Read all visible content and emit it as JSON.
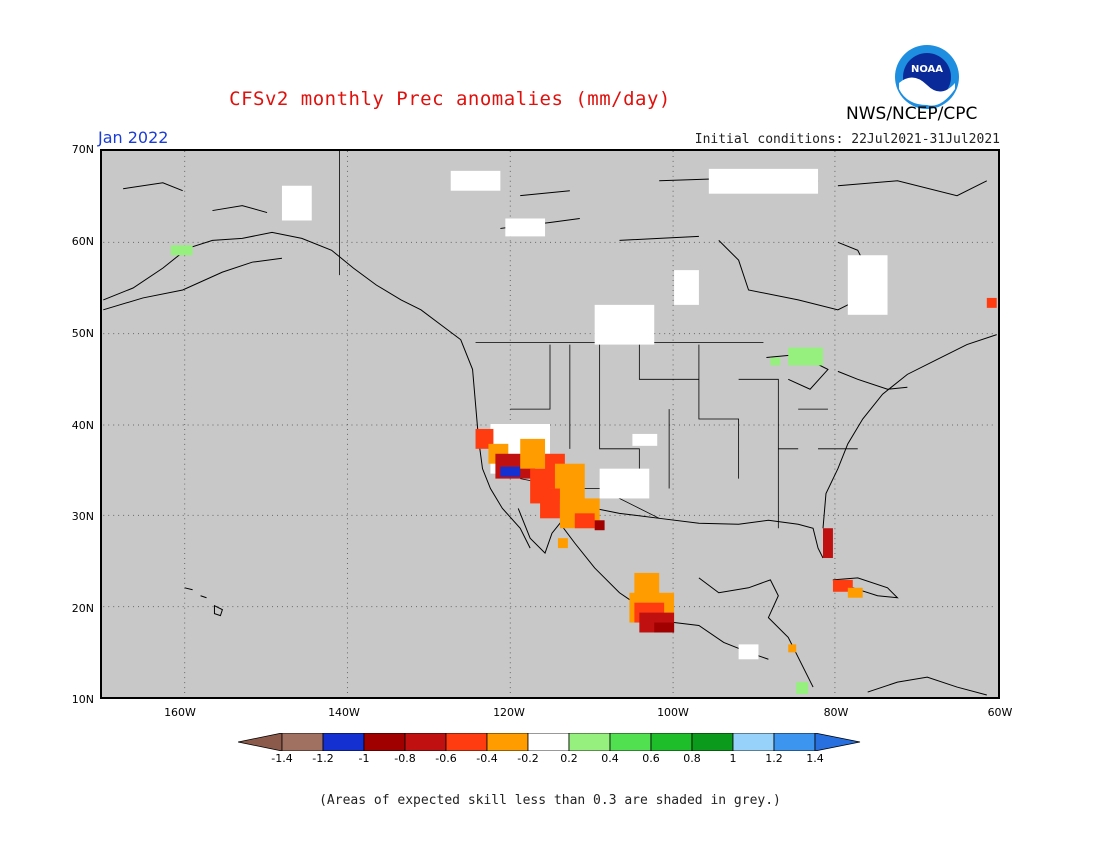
{
  "header": {
    "title": "CFSv2 monthly Prec anomalies (mm/day)",
    "agency": "NWS/NCEP/CPC",
    "month": "Jan 2022",
    "initial_conditions": "Initial conditions: 22Jul2021-31Jul2021",
    "logo_text": "NOAA"
  },
  "map": {
    "lat_labels": [
      "70N",
      "60N",
      "50N",
      "40N",
      "30N",
      "20N",
      "10N"
    ],
    "lon_labels": [
      "160W",
      "140W",
      "120W",
      "100W",
      "80W",
      "60W"
    ],
    "land_fill_color": "#c8c8c8"
  },
  "colorbar": {
    "labels": [
      "-1.4",
      "-1.2",
      "-1",
      "-0.8",
      "-0.6",
      "-0.4",
      "-0.2",
      "0.2",
      "0.4",
      "0.6",
      "0.8",
      "1",
      "1.2",
      "1.4"
    ],
    "colors": [
      "#8c5a4a",
      "#a07060",
      "#1530d0",
      "#a00000",
      "#c01010",
      "#ff3c10",
      "#ff9c00",
      "#ffffff",
      "#96f07e",
      "#50e050",
      "#1ebd2a",
      "#0c9a1c",
      "#96d2fa",
      "#3c96f0",
      "#2870e0"
    ]
  },
  "footnote": "(Areas of expected skill less than 0.3 are shaded in grey.)"
}
